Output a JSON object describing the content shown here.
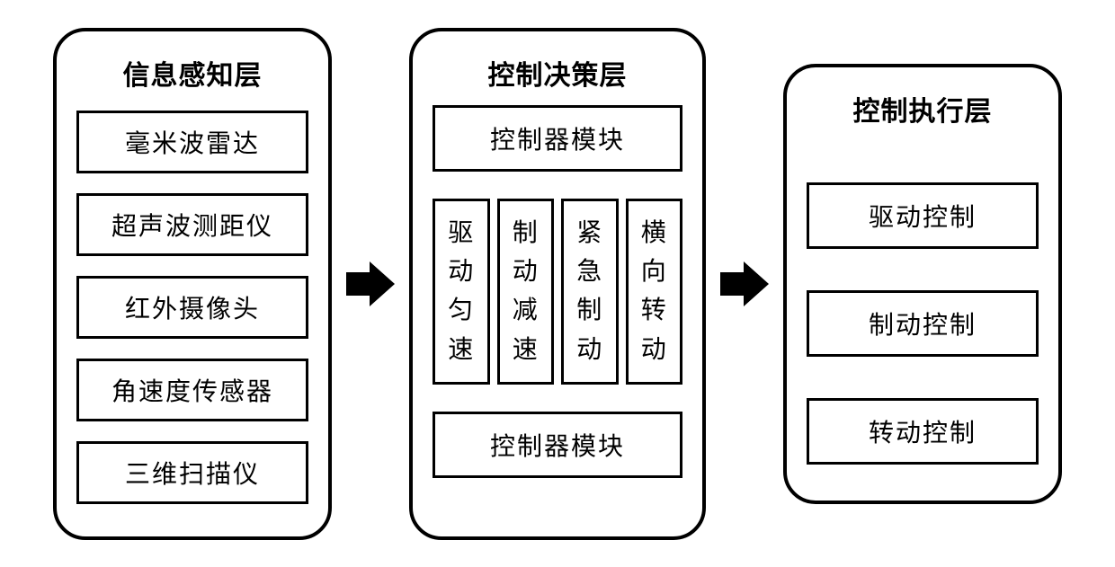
{
  "diagram": {
    "type": "flowchart",
    "background_color": "#ffffff",
    "border_color": "#000000",
    "panel_border_width": 4,
    "panel_border_radius": 36,
    "item_border_width": 3,
    "arrow_color": "#000000",
    "title_fontsize": 30,
    "item_fontsize": 27
  },
  "panel1": {
    "title": "信息感知层",
    "items": [
      "毫米波雷达",
      "超声波测距仪",
      "红外摄像头",
      "角速度传感器",
      "三维扫描仪"
    ]
  },
  "panel2": {
    "title": "控制决策层",
    "top_box": "控制器模块",
    "cells": [
      "驱动匀速",
      "制动减速",
      "紧急制动",
      "横向转动"
    ],
    "bottom_box": "控制器模块"
  },
  "panel3": {
    "title": "控制执行层",
    "items": [
      "驱动控制",
      "制动控制",
      "转动控制"
    ]
  }
}
